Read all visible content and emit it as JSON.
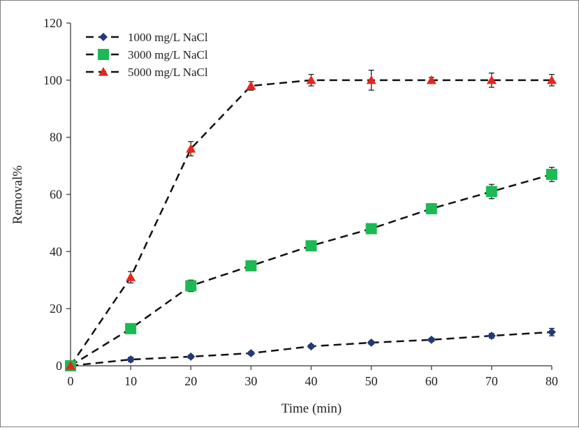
{
  "chart_data": {
    "type": "line",
    "title": "",
    "xlabel": "Time (min)",
    "ylabel": "Removal%",
    "xlim": [
      0,
      80
    ],
    "ylim": [
      0,
      120
    ],
    "xticks": [
      0,
      10,
      20,
      30,
      40,
      50,
      60,
      70,
      80
    ],
    "yticks": [
      0,
      20,
      40,
      60,
      80,
      100,
      120
    ],
    "grid": false,
    "legend_position": "top-left",
    "x": [
      0,
      10,
      20,
      30,
      40,
      50,
      60,
      70,
      80
    ],
    "series": [
      {
        "name": "1000 mg/L NaCl",
        "marker": "diamond",
        "color": "#1f3a7a",
        "values": [
          0,
          2.2,
          3.2,
          4.4,
          6.8,
          8.1,
          9.1,
          10.5,
          11.8
        ],
        "errors": [
          0,
          0.8,
          0.6,
          0.6,
          0.6,
          0.6,
          0.6,
          0.8,
          1.3
        ]
      },
      {
        "name": "3000 mg/L NaCl",
        "marker": "square",
        "color": "#1db954",
        "values": [
          0,
          13,
          28,
          35,
          42,
          48,
          55,
          61,
          67
        ],
        "errors": [
          0,
          0.8,
          2,
          0.8,
          0.8,
          0.8,
          0.8,
          2.5,
          2.5
        ]
      },
      {
        "name": "5000 mg/L NaCl",
        "marker": "triangle",
        "color": "#e8251c",
        "values": [
          0,
          31,
          76,
          98,
          100,
          100,
          100,
          100,
          100
        ],
        "errors": [
          0,
          2,
          2.5,
          1.5,
          2,
          3.5,
          1,
          2.5,
          2
        ]
      }
    ]
  }
}
